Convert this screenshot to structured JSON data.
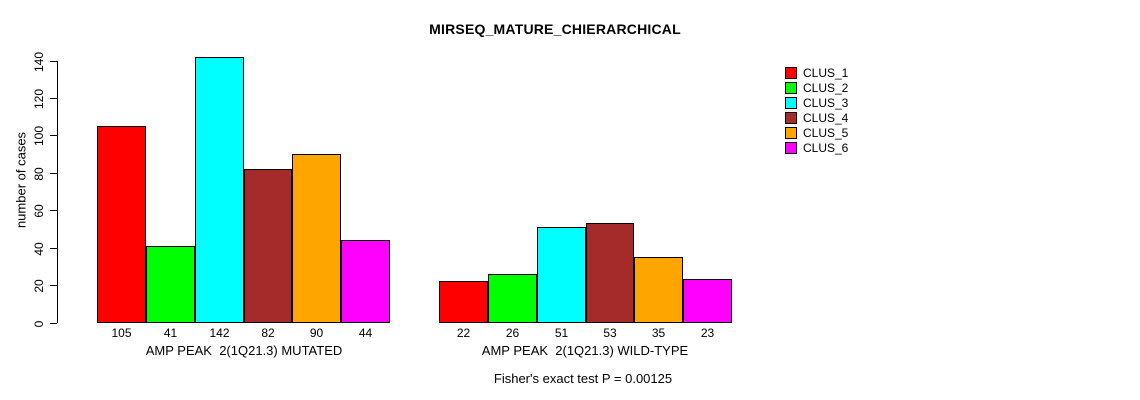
{
  "chart_data": {
    "type": "bar",
    "title": "MIRSEQ_MATURE_CHIERARCHICAL",
    "xlabel": "",
    "ylabel": "number of cases",
    "ylim": [
      0,
      140
    ],
    "yticks": [
      0,
      20,
      40,
      60,
      80,
      100,
      120,
      140
    ],
    "grid": false,
    "bar_border_color": "#000000",
    "background_color": "#FFFFFF",
    "legend": {
      "position": "right",
      "entries": [
        {
          "label": "CLUS_1",
          "color": "#FF0000"
        },
        {
          "label": "CLUS_2",
          "color": "#00FF00"
        },
        {
          "label": "CLUS_3",
          "color": "#00FFFF"
        },
        {
          "label": "CLUS_4",
          "color": "#A52A2A"
        },
        {
          "label": "CLUS_5",
          "color": "#FFA500"
        },
        {
          "label": "CLUS_6",
          "color": "#FF00FF"
        }
      ]
    },
    "groups": [
      {
        "label": "AMP PEAK  2(1Q21.3) MUTATED",
        "values": [
          105,
          41,
          142,
          82,
          90,
          44
        ]
      },
      {
        "label": "AMP PEAK  2(1Q21.3) WILD-TYPE",
        "values": [
          22,
          26,
          51,
          53,
          35,
          23
        ]
      }
    ],
    "bar_value_labels_shown": true,
    "annotation": "Fisher's exact test P = 0.00125"
  }
}
